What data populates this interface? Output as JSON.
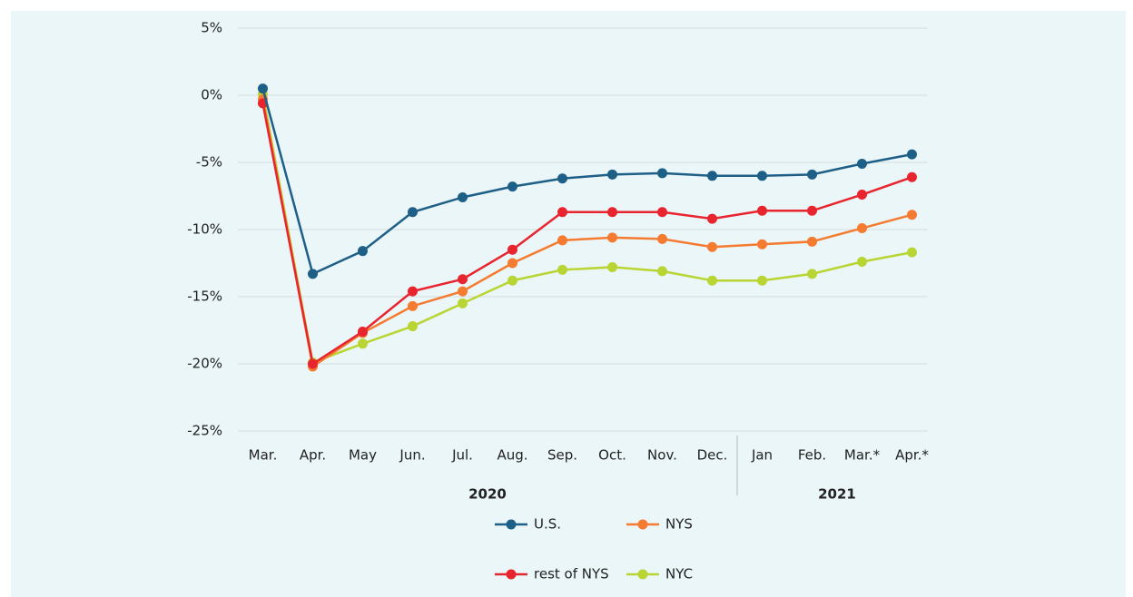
{
  "chart_data": {
    "type": "line",
    "categories": [
      "Mar.",
      "Apr.",
      "May",
      "Jun.",
      "Jul.",
      "Aug.",
      "Sep.",
      "Oct.",
      "Nov.",
      "Dec.",
      "Jan",
      "Feb.",
      "Mar.*",
      "Apr.*"
    ],
    "year_groups": [
      {
        "label": "2020",
        "from": 0,
        "to": 9
      },
      {
        "label": "2021",
        "from": 10,
        "to": 13
      }
    ],
    "series": [
      {
        "name": "NYC",
        "color": "#b9d534",
        "values": [
          0.1,
          -19.9,
          -18.5,
          -17.2,
          -15.5,
          -13.8,
          -13.0,
          -12.8,
          -13.1,
          -13.8,
          -13.8,
          -13.3,
          -12.4,
          -11.7
        ]
      },
      {
        "name": "NYS",
        "color": "#f47b2f",
        "values": [
          -0.3,
          -20.2,
          -17.7,
          -15.7,
          -14.6,
          -12.5,
          -10.8,
          -10.6,
          -10.7,
          -11.3,
          -11.1,
          -10.9,
          -9.9,
          -8.9
        ]
      },
      {
        "name": "rest of NYS",
        "color": "#e8252e",
        "values": [
          -0.6,
          -20.0,
          -17.6,
          -14.6,
          -13.7,
          -11.5,
          -8.7,
          -8.7,
          -8.7,
          -9.2,
          -8.6,
          -8.6,
          -7.4,
          -6.1
        ]
      },
      {
        "name": "U.S.",
        "color": "#1d5f86",
        "values": [
          0.5,
          -13.3,
          -11.6,
          -8.7,
          -7.6,
          -6.8,
          -6.2,
          -5.9,
          -5.8,
          -6.0,
          -6.0,
          -5.9,
          -5.1,
          -4.4
        ]
      }
    ],
    "ylim": [
      -25,
      5
    ],
    "yticks": [
      {
        "value": 5,
        "label": "5%"
      },
      {
        "value": 0,
        "label": "0%"
      },
      {
        "value": -5,
        "label": "-5%"
      },
      {
        "value": -10,
        "label": "-10%"
      },
      {
        "value": -15,
        "label": "-15%"
      },
      {
        "value": -20,
        "label": "-20%"
      },
      {
        "value": -25,
        "label": "-25%"
      }
    ],
    "grid": true
  }
}
